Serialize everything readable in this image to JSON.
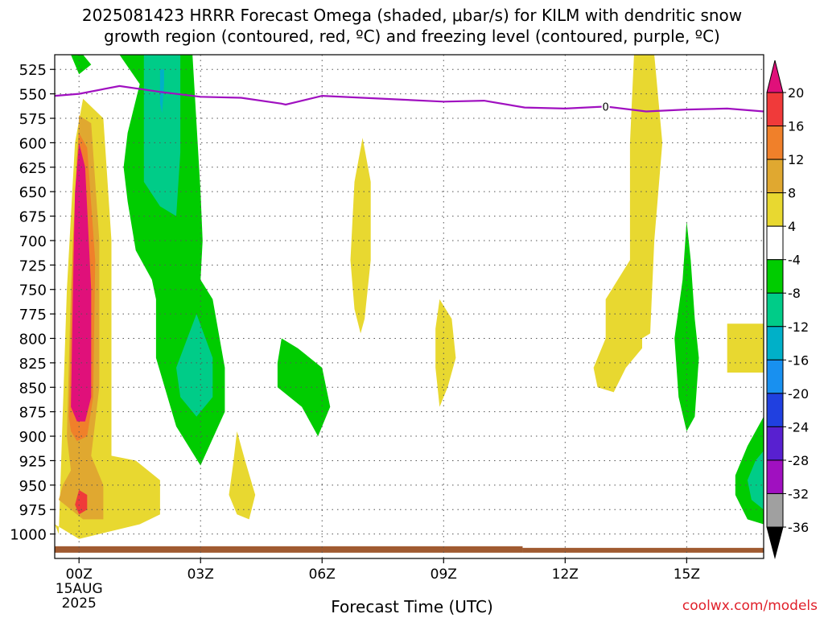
{
  "title_line1": "2025081423 HRRR Forecast Omega (shaded, μbar/s) for KILM with dendritic snow",
  "title_line2": "growth region (contoured, red, ºC) and freezing level (contoured, purple, ºC)",
  "source": "coolwx.com/models",
  "chart_data": {
    "type": "heatmap",
    "title": "2025081423 HRRR Forecast Omega (shaded, μbar/s) for KILM with dendritic snow growth region (contoured, red, ºC) and freezing level (contoured, purple, ºC)",
    "xlabel": "Forecast Time (UTC)",
    "ylabel": "",
    "x_unit": "hours since 2025-08-15 00Z",
    "xlim": [
      -0.6,
      16.9
    ],
    "ylim": [
      1025,
      510
    ],
    "x_ticks": [
      {
        "value": 0,
        "label": "00Z",
        "sublabel1": "15AUG",
        "sublabel2": "2025"
      },
      {
        "value": 3,
        "label": "03Z"
      },
      {
        "value": 6,
        "label": "06Z"
      },
      {
        "value": 9,
        "label": "09Z"
      },
      {
        "value": 12,
        "label": "12Z"
      },
      {
        "value": 15,
        "label": "15Z"
      }
    ],
    "y_ticks": [
      525,
      550,
      575,
      600,
      625,
      650,
      675,
      700,
      725,
      750,
      775,
      800,
      825,
      850,
      875,
      900,
      925,
      950,
      975,
      1000
    ],
    "grid": true,
    "colorbar": {
      "labels": [
        "20",
        "16",
        "12",
        "8",
        "4",
        "-4",
        "-8",
        "-12",
        "-16",
        "-20",
        "-24",
        "-28",
        "-32",
        "-36"
      ],
      "colors": [
        "#e0107a",
        "#f03a3a",
        "#f0802a",
        "#e0a830",
        "#e8d830",
        "#ffffff",
        "#00cc00",
        "#00cc88",
        "#00b0c8",
        "#1890f0",
        "#2040e0",
        "#5820d0",
        "#a010c0",
        "#a0a0a0",
        "#000000"
      ]
    },
    "freezing_level": {
      "color": "#a010c0",
      "label": "0",
      "label_x": 13,
      "points": [
        [
          -0.6,
          552
        ],
        [
          0,
          550
        ],
        [
          1,
          542
        ],
        [
          2,
          548
        ],
        [
          3,
          553
        ],
        [
          4,
          554
        ],
        [
          5,
          560
        ],
        [
          5.1,
          561
        ],
        [
          6,
          552
        ],
        [
          7,
          554
        ],
        [
          8,
          556
        ],
        [
          9,
          558
        ],
        [
          10,
          557
        ],
        [
          11,
          564
        ],
        [
          12,
          565
        ],
        [
          13,
          563
        ],
        [
          14,
          568
        ],
        [
          15,
          566
        ],
        [
          16,
          565
        ],
        [
          16.9,
          568
        ]
      ]
    },
    "terrain": {
      "color": "#a05a30",
      "pressure": 1015
    },
    "shaded_regions": [
      {
        "name": "omega-ascent-00z",
        "color": "#e8d830",
        "points": [
          [
            -0.5,
            1000
          ],
          [
            -0.3,
            750
          ],
          [
            -0.1,
            600
          ],
          [
            0.1,
            555
          ],
          [
            0.6,
            575
          ],
          [
            0.8,
            700
          ],
          [
            0.8,
            850
          ],
          [
            0.8,
            920
          ],
          [
            1.4,
            925
          ],
          [
            2,
            945
          ],
          [
            2,
            980
          ],
          [
            1.5,
            990
          ],
          [
            0.5,
            1000
          ],
          [
            0,
            1005
          ],
          [
            -0.6,
            990
          ]
        ]
      },
      {
        "name": "omega-ascent-00z",
        "color": "#e0a830",
        "points": [
          [
            -0.3,
            900
          ],
          [
            -0.2,
            750
          ],
          [
            -0.05,
            620
          ],
          [
            0,
            572
          ],
          [
            0.3,
            580
          ],
          [
            0.5,
            700
          ],
          [
            0.5,
            850
          ],
          [
            0.3,
            920
          ],
          [
            0.6,
            950
          ],
          [
            0.6,
            985
          ],
          [
            0.1,
            985
          ],
          [
            -0.5,
            965
          ],
          [
            -0.4,
            950
          ],
          [
            -0.2,
            935
          ]
        ]
      },
      {
        "name": "omega-ascent-00z",
        "color": "#f0802a",
        "points": [
          [
            -0.25,
            880
          ],
          [
            -0.15,
            700
          ],
          [
            -0.05,
            615
          ],
          [
            0,
            590
          ],
          [
            0.2,
            605
          ],
          [
            0.4,
            720
          ],
          [
            0.35,
            860
          ],
          [
            0.2,
            900
          ],
          [
            -0.05,
            905
          ],
          [
            -0.2,
            895
          ]
        ]
      },
      {
        "name": "omega-ascent-00z",
        "color": "#f03a3a",
        "points": [
          [
            0,
            955
          ],
          [
            0.2,
            960
          ],
          [
            0.2,
            975
          ],
          [
            0,
            980
          ],
          [
            -0.1,
            970
          ]
        ]
      },
      {
        "name": "omega-ascent-00z",
        "color": "#e0107a",
        "points": [
          [
            -0.2,
            870
          ],
          [
            -0.15,
            750
          ],
          [
            -0.1,
            650
          ],
          [
            0,
            600
          ],
          [
            0.15,
            625
          ],
          [
            0.3,
            750
          ],
          [
            0.3,
            860
          ],
          [
            0.15,
            885
          ],
          [
            -0.05,
            885
          ]
        ]
      },
      {
        "name": "omega-descent-02z",
        "color": "#00cc00",
        "points": [
          [
            1,
            510
          ],
          [
            2.8,
            510
          ],
          [
            3,
            650
          ],
          [
            3.05,
            700
          ],
          [
            3,
            740
          ],
          [
            3.3,
            760
          ],
          [
            3.6,
            830
          ],
          [
            3.6,
            875
          ],
          [
            3,
            930
          ],
          [
            2.4,
            890
          ],
          [
            1.9,
            820
          ],
          [
            1.9,
            760
          ],
          [
            1.8,
            740
          ],
          [
            1.4,
            710
          ],
          [
            1.2,
            660
          ],
          [
            1.1,
            625
          ],
          [
            1.2,
            590
          ],
          [
            1.5,
            540
          ]
        ]
      },
      {
        "name": "omega-descent-02z",
        "color": "#00cc88",
        "points": [
          [
            1.6,
            510
          ],
          [
            2.5,
            510
          ],
          [
            2.5,
            610
          ],
          [
            2.4,
            675
          ],
          [
            2,
            665
          ],
          [
            1.6,
            640
          ],
          [
            1.6,
            590
          ]
        ]
      },
      {
        "name": "omega-descent-02z",
        "color": "#00cc88",
        "points": [
          [
            2.9,
            775
          ],
          [
            3.3,
            820
          ],
          [
            3.3,
            860
          ],
          [
            2.9,
            880
          ],
          [
            2.5,
            860
          ],
          [
            2.4,
            830
          ]
        ]
      },
      {
        "name": "omega-descent-02z",
        "color": "#00b0c8",
        "points": [
          [
            2,
            525
          ],
          [
            2,
            560
          ],
          [
            2.05,
            570
          ],
          [
            2.1,
            540
          ],
          [
            2.1,
            525
          ]
        ]
      },
      {
        "name": "omega-descent-00z",
        "color": "#00cc00",
        "points": [
          [
            -0.2,
            510
          ],
          [
            0.1,
            510
          ],
          [
            0.3,
            520
          ],
          [
            0,
            530
          ]
        ]
      },
      {
        "name": "omega-descent-05z",
        "color": "#00cc00",
        "points": [
          [
            5,
            800
          ],
          [
            5.4,
            810
          ],
          [
            6,
            830
          ],
          [
            6.2,
            870
          ],
          [
            5.9,
            900
          ],
          [
            5.5,
            870
          ],
          [
            4.9,
            850
          ],
          [
            4.9,
            825
          ]
        ]
      },
      {
        "name": "omega-ascent-04z",
        "color": "#e8d830",
        "points": [
          [
            3.9,
            895
          ],
          [
            4.1,
            925
          ],
          [
            4.35,
            960
          ],
          [
            4.2,
            985
          ],
          [
            3.9,
            980
          ],
          [
            3.7,
            960
          ],
          [
            3.8,
            930
          ]
        ]
      },
      {
        "name": "omega-ascent-07z",
        "color": "#e8d830",
        "points": [
          [
            7,
            595
          ],
          [
            7.2,
            640
          ],
          [
            7.2,
            720
          ],
          [
            7.05,
            780
          ],
          [
            6.95,
            795
          ],
          [
            6.8,
            770
          ],
          [
            6.7,
            720
          ],
          [
            6.8,
            640
          ]
        ]
      },
      {
        "name": "omega-ascent-09z",
        "color": "#e8d830",
        "points": [
          [
            8.9,
            760
          ],
          [
            9.2,
            780
          ],
          [
            9.3,
            820
          ],
          [
            9.1,
            850
          ],
          [
            8.9,
            870
          ],
          [
            8.8,
            830
          ],
          [
            8.8,
            790
          ]
        ]
      },
      {
        "name": "omega-ascent-14z",
        "color": "#e8d830",
        "points": [
          [
            13.7,
            510
          ],
          [
            14.2,
            510
          ],
          [
            14.4,
            600
          ],
          [
            14.2,
            700
          ],
          [
            14.1,
            795
          ],
          [
            13.9,
            800
          ],
          [
            13.9,
            810
          ],
          [
            13.5,
            830
          ],
          [
            13.2,
            855
          ],
          [
            12.8,
            850
          ],
          [
            12.7,
            830
          ],
          [
            13,
            800
          ],
          [
            13,
            760
          ],
          [
            13.6,
            720
          ],
          [
            13.6,
            600
          ]
        ]
      },
      {
        "name": "omega-ascent-16z",
        "color": "#e8d830",
        "points": [
          [
            16,
            785
          ],
          [
            16.9,
            785
          ],
          [
            16.9,
            835
          ],
          [
            16,
            835
          ]
        ]
      },
      {
        "name": "omega-descent-15z",
        "color": "#00cc00",
        "points": [
          [
            15,
            680
          ],
          [
            15.1,
            720
          ],
          [
            15.2,
            780
          ],
          [
            15.3,
            820
          ],
          [
            15.2,
            880
          ],
          [
            15,
            895
          ],
          [
            14.8,
            860
          ],
          [
            14.7,
            800
          ],
          [
            14.9,
            740
          ]
        ]
      },
      {
        "name": "omega-descent-16z",
        "color": "#00cc00",
        "points": [
          [
            16.9,
            880
          ],
          [
            16.9,
            990
          ],
          [
            16.5,
            985
          ],
          [
            16.2,
            960
          ],
          [
            16.2,
            940
          ],
          [
            16.5,
            910
          ]
        ]
      },
      {
        "name": "omega-descent-16z",
        "color": "#00cc88",
        "points": [
          [
            16.9,
            915
          ],
          [
            16.9,
            975
          ],
          [
            16.6,
            965
          ],
          [
            16.5,
            945
          ],
          [
            16.7,
            925
          ]
        ]
      }
    ]
  }
}
